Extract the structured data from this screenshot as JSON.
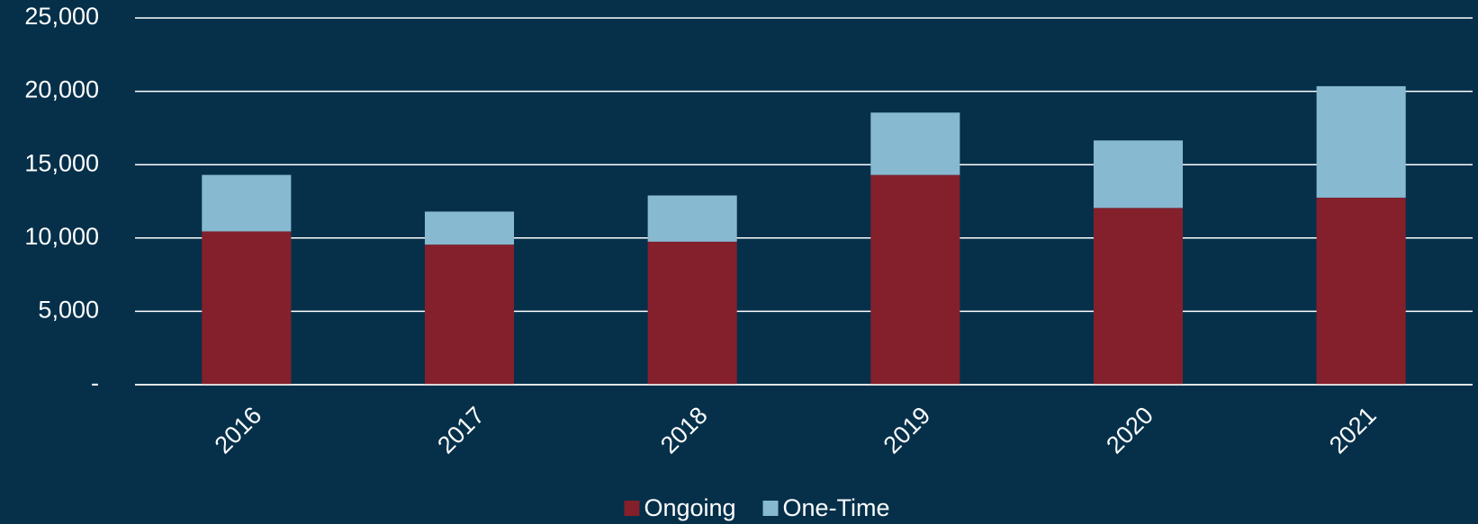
{
  "chart_data": {
    "type": "stacked_bar",
    "categories": [
      "2016",
      "2017",
      "2018",
      "2019",
      "2020",
      "2021"
    ],
    "series": [
      {
        "name": "Ongoing",
        "color": "#84202b",
        "values": [
          10450,
          9550,
          9750,
          14300,
          12050,
          12750
        ]
      },
      {
        "name": "One-Time",
        "color": "#87b9d1",
        "values": [
          3850,
          2250,
          3150,
          4250,
          4600,
          7600
        ]
      }
    ],
    "ylim": [
      0,
      25000
    ],
    "yticks": [
      {
        "value": 0,
        "label": "-"
      },
      {
        "value": 5000,
        "label": "5,000"
      },
      {
        "value": 10000,
        "label": "10,000"
      },
      {
        "value": 15000,
        "label": "15,000"
      },
      {
        "value": 20000,
        "label": "20,000"
      },
      {
        "value": 25000,
        "label": "25,000"
      }
    ],
    "grid": true,
    "legend": "bottom"
  }
}
